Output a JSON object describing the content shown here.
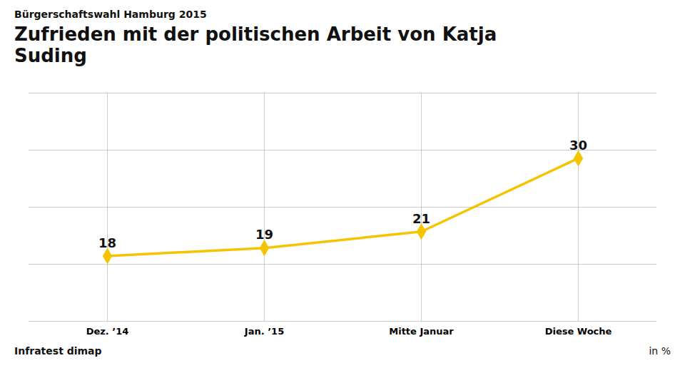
{
  "chart_data": {
    "type": "line",
    "subtitle": "Bürgerschaftswahl Hamburg 2015",
    "title": "Zufrieden mit der politischen Arbeit von Katja\nSuding",
    "categories": [
      "Dez. ’14",
      "Jan. ’15",
      "Mitte Januar",
      "Diese Woche"
    ],
    "values": [
      18,
      19,
      21,
      30
    ],
    "color": "#F5C400",
    "marker": "diamond",
    "ylim": [
      10,
      38
    ],
    "yticks": [
      10,
      17,
      24,
      31,
      38
    ],
    "grid": true,
    "tick_labels": "x",
    "data_labels": true,
    "annotations": [
      "Infratest dimap",
      "in %"
    ]
  }
}
